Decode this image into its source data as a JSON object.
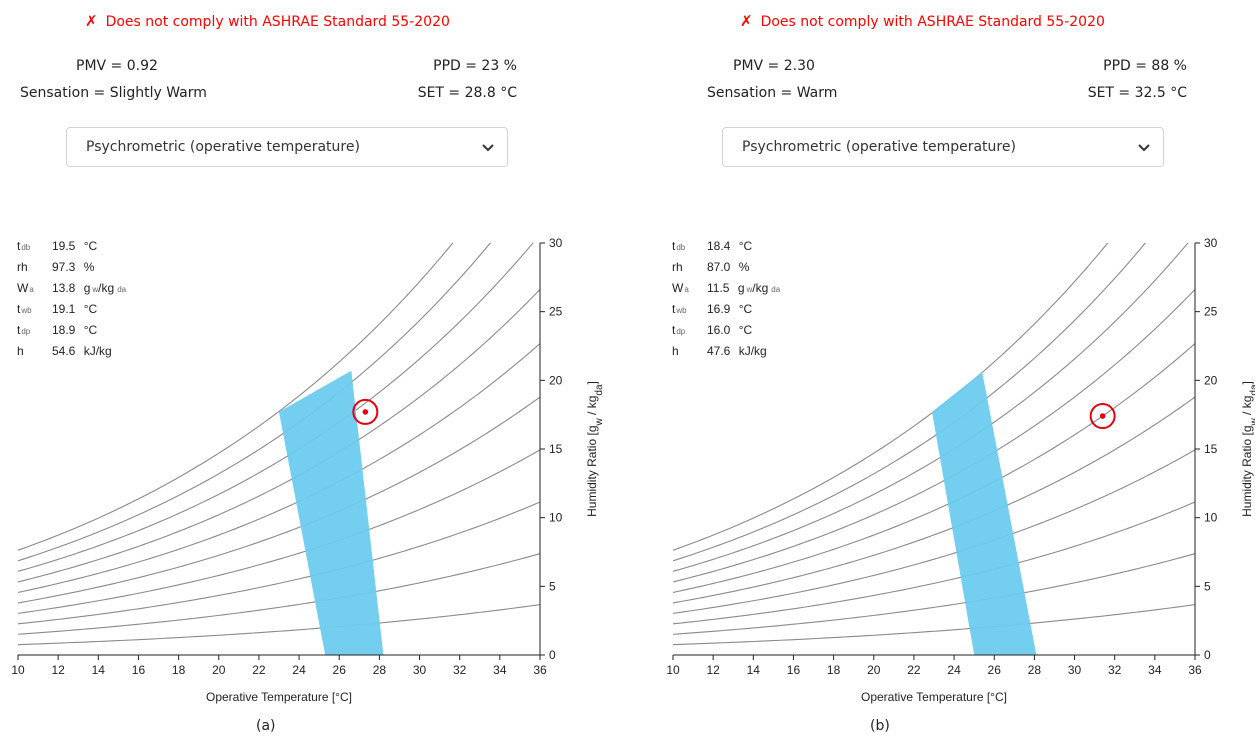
{
  "panels": [
    {
      "compliance": {
        "icon": "✗",
        "text": "Does not comply with ASHRAE Standard 55-2020"
      },
      "pmv": "PMV = 0.92",
      "ppd": "PPD = 23 %",
      "sensation": "Sensation = Slightly Warm",
      "set": "SET = 28.8 °C",
      "chart_select": {
        "selected": "Psychrometric (operative temperature)"
      },
      "caption": "(a)",
      "readout": [
        {
          "sym": "t",
          "sub": "db",
          "value": "19.5",
          "unit": "°C"
        },
        {
          "sym": "rh",
          "sub": "",
          "value": "97.3",
          "unit": "%"
        },
        {
          "sym": "W",
          "sub": "a",
          "value": "13.8",
          "unit": "g",
          "unit_sub1": "w",
          "unit2": "/kg",
          "unit_sub2": "da"
        },
        {
          "sym": "t",
          "sub": "wb",
          "value": "19.1",
          "unit": "°C"
        },
        {
          "sym": "t",
          "sub": "dp",
          "value": "18.9",
          "unit": "°C"
        },
        {
          "sym": "h",
          "sub": "",
          "value": "54.6",
          "unit": "kJ/kg"
        }
      ]
    },
    {
      "compliance": {
        "icon": "✗",
        "text": "Does not comply with ASHRAE Standard 55-2020"
      },
      "pmv": "PMV = 2.30",
      "ppd": "PPD = 88 %",
      "sensation": "Sensation = Warm",
      "set": "SET = 32.5 °C",
      "chart_select": {
        "selected": "Psychrometric (operative temperature)"
      },
      "caption": "(b)",
      "readout": [
        {
          "sym": "t",
          "sub": "db",
          "value": "18.4",
          "unit": "°C"
        },
        {
          "sym": "rh",
          "sub": "",
          "value": "87.0",
          "unit": "%"
        },
        {
          "sym": "W",
          "sub": "a",
          "value": "11.5",
          "unit": "g",
          "unit_sub1": "w",
          "unit2": "/kg",
          "unit_sub2": "da"
        },
        {
          "sym": "t",
          "sub": "wb",
          "value": "16.9",
          "unit": "°C"
        },
        {
          "sym": "t",
          "sub": "dp",
          "value": "16.0",
          "unit": "°C"
        },
        {
          "sym": "h",
          "sub": "",
          "value": "47.6",
          "unit": "kJ/kg"
        }
      ]
    }
  ],
  "chart_data": [
    {
      "type": "scatter",
      "xlabel": "Operative Temperature [°C]",
      "ylabel": "Humidity Ratio [g_w / kg_da]",
      "xlim": [
        10,
        36
      ],
      "ylim": [
        0,
        30
      ],
      "x_ticks": [
        10,
        12,
        14,
        16,
        18,
        20,
        22,
        24,
        26,
        28,
        30,
        32,
        34,
        36
      ],
      "y_ticks": [
        0,
        5,
        10,
        15,
        20,
        25,
        30
      ],
      "grid": false,
      "rh_curves_percent": [
        10,
        20,
        30,
        40,
        50,
        60,
        70,
        80,
        90,
        100
      ],
      "comfort_zone": {
        "color": "#6ccbef",
        "polygon": [
          [
            25.3,
            0
          ],
          [
            28.2,
            0
          ],
          [
            26.6,
            20.7
          ],
          [
            23.0,
            17.7
          ]
        ]
      },
      "operating_point": {
        "x": 27.3,
        "y": 17.7,
        "color": "#e4000f"
      }
    },
    {
      "type": "scatter",
      "xlabel": "Operative Temperature [°C]",
      "ylabel": "Humidity Ratio [g_w / kg_da]",
      "xlim": [
        10,
        36
      ],
      "ylim": [
        0,
        30
      ],
      "x_ticks": [
        10,
        12,
        14,
        16,
        18,
        20,
        22,
        24,
        26,
        28,
        30,
        32,
        34,
        36
      ],
      "y_ticks": [
        0,
        5,
        10,
        15,
        20,
        25,
        30
      ],
      "grid": false,
      "rh_curves_percent": [
        10,
        20,
        30,
        40,
        50,
        60,
        70,
        80,
        90,
        100
      ],
      "comfort_zone": {
        "color": "#6ccbef",
        "polygon": [
          [
            25.0,
            0
          ],
          [
            28.1,
            0
          ],
          [
            25.4,
            20.6
          ],
          [
            22.9,
            17.7
          ]
        ]
      },
      "operating_point": {
        "x": 31.4,
        "y": 17.4,
        "color": "#e4000f"
      }
    }
  ]
}
